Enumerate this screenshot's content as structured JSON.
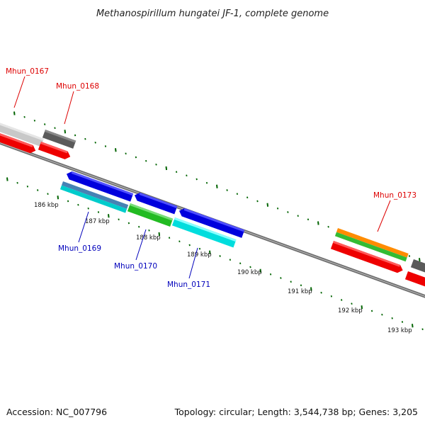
{
  "title": "Methanospirillum hungatei JF-1, complete genome",
  "footer": {
    "accession": "Accession: NC_007796",
    "summary": "Topology: circular; Length: 3,544,738 bp; Genes: 3,205"
  },
  "colors": {
    "label_top_strand": "#dd0000",
    "label_bottom_strand": "#0000bb",
    "tick_green": "#006400",
    "backbone": "#808080"
  },
  "scale_ticks": [
    {
      "label": "186 kbp"
    },
    {
      "label": "187 kbp"
    },
    {
      "label": "188 kbp"
    },
    {
      "label": "189 kbp"
    },
    {
      "label": "190 kbp"
    },
    {
      "label": "191 kbp"
    },
    {
      "label": "192 kbp"
    },
    {
      "label": "193 kbp"
    }
  ],
  "genes": [
    {
      "id": "Mhun_0167",
      "label": "Mhun_0167",
      "strand": "top"
    },
    {
      "id": "Mhun_0168",
      "label": "Mhun_0168",
      "strand": "top"
    },
    {
      "id": "Mhun_0169",
      "label": "Mhun_0169",
      "strand": "bottom"
    },
    {
      "id": "Mhun_0170",
      "label": "Mhun_0170",
      "strand": "bottom"
    },
    {
      "id": "Mhun_0171",
      "label": "Mhun_0171",
      "strand": "bottom"
    },
    {
      "id": "Mhun_0173",
      "label": "Mhun_0173",
      "strand": "top"
    }
  ]
}
